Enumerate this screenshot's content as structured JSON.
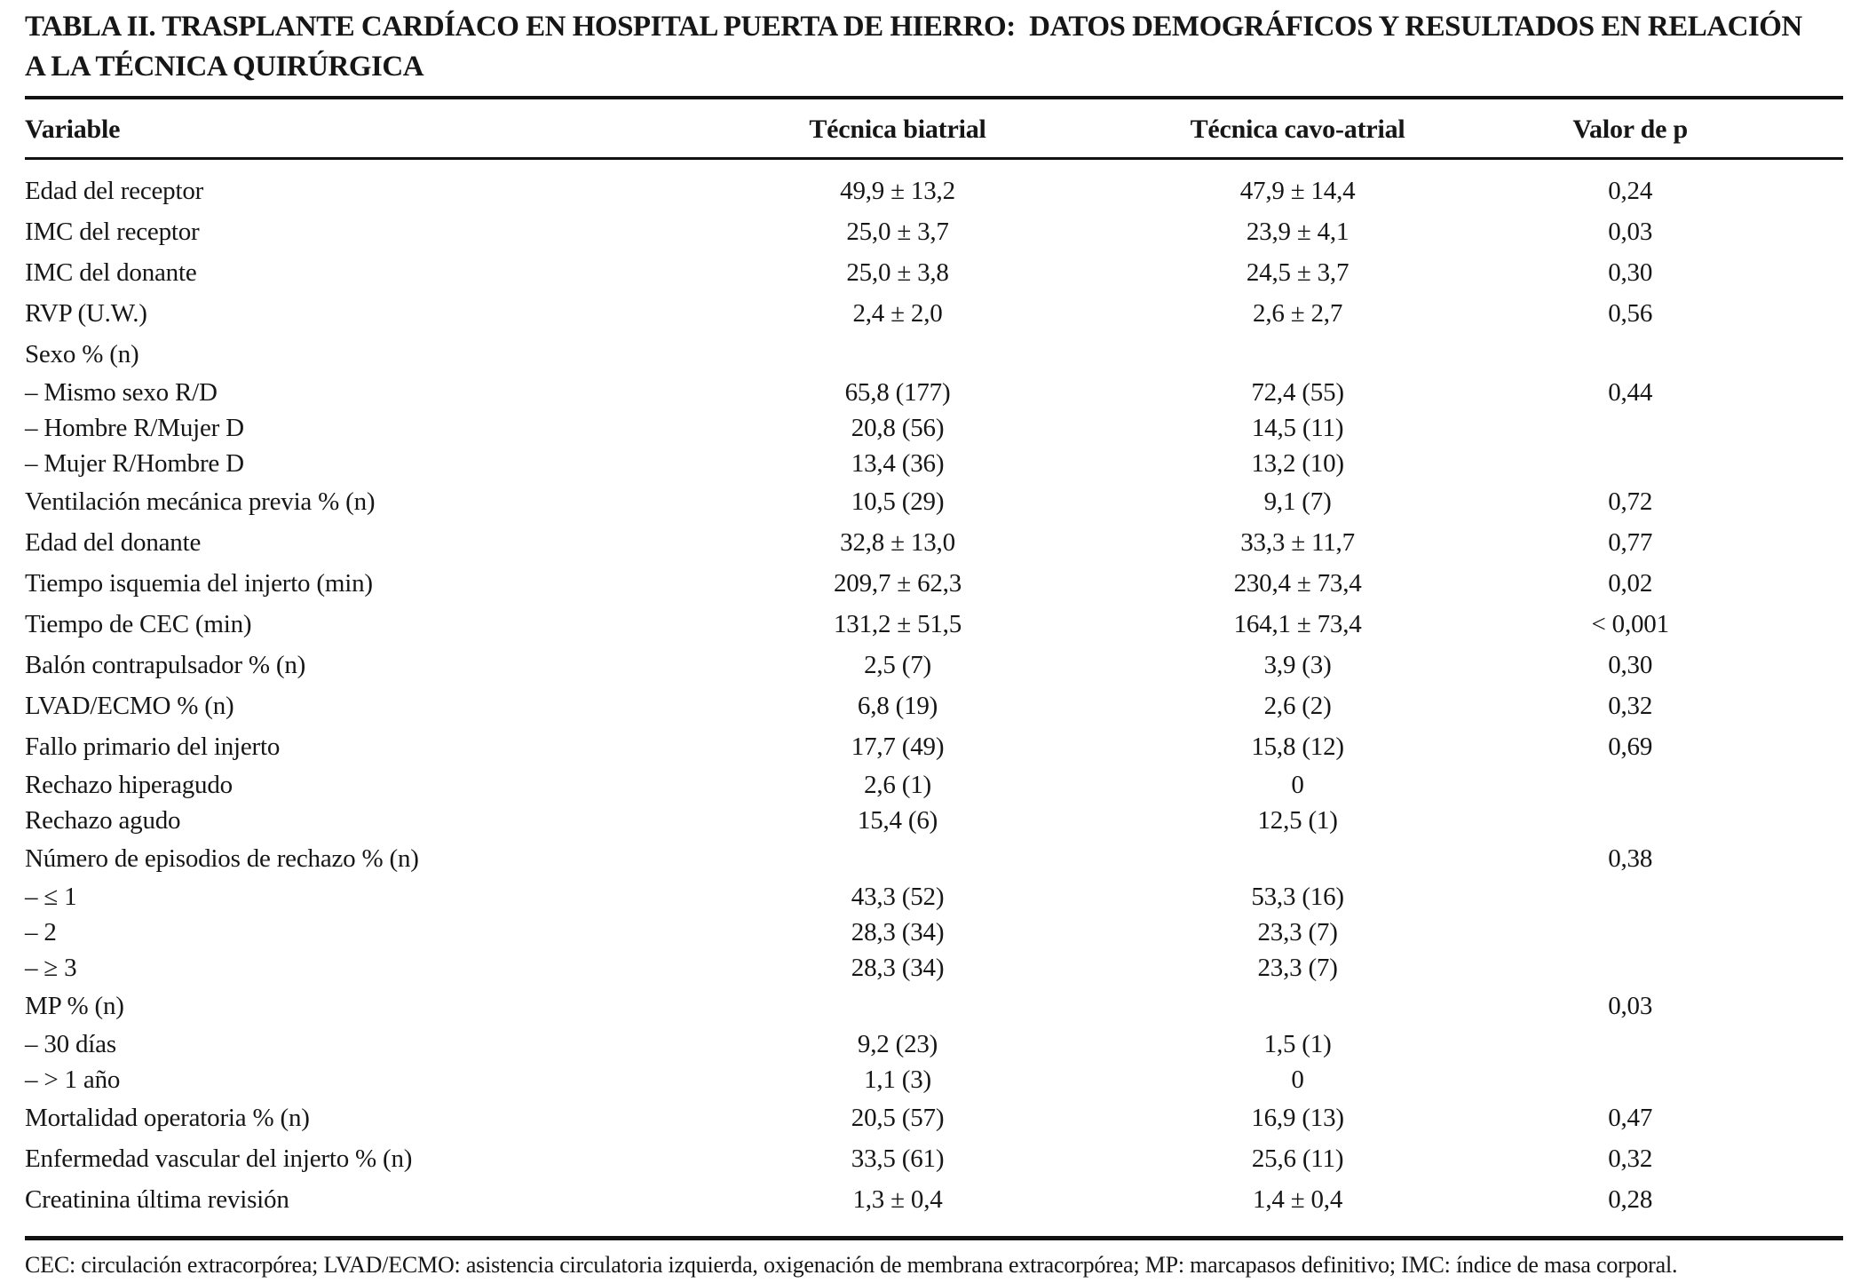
{
  "page": {
    "title_line1": "TABLA II. TRASPLANTE CARDÍACO EN HOSPITAL PUERTA DE HIERRO:  DATOS DEMOGRÁFICOS Y RESULTADOS EN RELACIÓN",
    "title_line2": "A LA TÉCNICA QUIRÚRGICA",
    "footnote": "CEC: circulación extracorpórea; LVAD/ECMO: asistencia circulatoria izquierda, oxigenación de membrana extracorpórea; MP: marcapasos definitivo; IMC: índice de masa corporal."
  },
  "table": {
    "columns": [
      "Variable",
      "Técnica biatrial",
      "Técnica cavo-atrial",
      "Valor de p"
    ],
    "rows": [
      {
        "variable": "Edad del receptor",
        "biatrial": "49,9 ± 13,2",
        "cavo_atrial": "47,9 ± 14,4",
        "p": "0,24",
        "tight": false
      },
      {
        "variable": "IMC del receptor",
        "biatrial": "25,0 ± 3,7",
        "cavo_atrial": "23,9 ± 4,1",
        "p": "0,03",
        "tight": false
      },
      {
        "variable": "IMC del donante",
        "biatrial": "25,0 ± 3,8",
        "cavo_atrial": "24,5 ± 3,7",
        "p": "0,30",
        "tight": false
      },
      {
        "variable": "RVP (U.W.)",
        "biatrial": "2,4 ± 2,0",
        "cavo_atrial": "2,6 ± 2,7",
        "p": "0,56",
        "tight": false
      },
      {
        "variable": "Sexo % (n)",
        "biatrial": "",
        "cavo_atrial": "",
        "p": "",
        "tight": false
      },
      {
        "variable": "– Mismo sexo R/D",
        "biatrial": "65,8 (177)",
        "cavo_atrial": "72,4 (55)",
        "p": "0,44",
        "tight": true
      },
      {
        "variable": "– Hombre R/Mujer D",
        "biatrial": "20,8 (56)",
        "cavo_atrial": "14,5 (11)",
        "p": "",
        "tight": true
      },
      {
        "variable": "– Mujer R/Hombre D",
        "biatrial": "13,4 (36)",
        "cavo_atrial": "13,2 (10)",
        "p": "",
        "tight": true
      },
      {
        "variable": "Ventilación mecánica previa % (n)",
        "biatrial": "10,5 (29)",
        "cavo_atrial": "9,1 (7)",
        "p": "0,72",
        "tight": false
      },
      {
        "variable": "Edad del donante",
        "biatrial": "32,8 ± 13,0",
        "cavo_atrial": "33,3 ± 11,7",
        "p": "0,77",
        "tight": false
      },
      {
        "variable": "Tiempo isquemia del injerto (min)",
        "biatrial": "209,7 ± 62,3",
        "cavo_atrial": "230,4 ± 73,4",
        "p": "0,02",
        "tight": false
      },
      {
        "variable": "Tiempo de CEC (min)",
        "biatrial": "131,2 ± 51,5",
        "cavo_atrial": "164,1 ± 73,4",
        "p": "< 0,001",
        "tight": false
      },
      {
        "variable": "Balón contrapulsador % (n)",
        "biatrial": "2,5 (7)",
        "cavo_atrial": "3,9 (3)",
        "p": "0,30",
        "tight": false
      },
      {
        "variable": "LVAD/ECMO % (n)",
        "biatrial": "6,8 (19)",
        "cavo_atrial": "2,6 (2)",
        "p": "0,32",
        "tight": false
      },
      {
        "variable": "Fallo primario del injerto",
        "biatrial": "17,7 (49)",
        "cavo_atrial": "15,8 (12)",
        "p": "0,69",
        "tight": false
      },
      {
        "variable": "Rechazo hiperagudo",
        "biatrial": "2,6 (1)",
        "cavo_atrial": "0",
        "p": "",
        "tight": true
      },
      {
        "variable": "Rechazo agudo",
        "biatrial": "15,4 (6)",
        "cavo_atrial": "12,5 (1)",
        "p": "",
        "tight": true
      },
      {
        "variable": "Número de episodios de rechazo % (n)",
        "biatrial": "",
        "cavo_atrial": "",
        "p": "0,38",
        "tight": false
      },
      {
        "variable": "– ≤ 1",
        "biatrial": "43,3 (52)",
        "cavo_atrial": "53,3 (16)",
        "p": "",
        "tight": true
      },
      {
        "variable": "– 2",
        "biatrial": "28,3 (34)",
        "cavo_atrial": "23,3 (7)",
        "p": "",
        "tight": true
      },
      {
        "variable": "– ≥ 3",
        "biatrial": "28,3 (34)",
        "cavo_atrial": "23,3 (7)",
        "p": "",
        "tight": true
      },
      {
        "variable": "MP % (n)",
        "biatrial": "",
        "cavo_atrial": "",
        "p": "0,03",
        "tight": false
      },
      {
        "variable": "– 30 días",
        "biatrial": "9,2 (23)",
        "cavo_atrial": "1,5 (1)",
        "p": "",
        "tight": true
      },
      {
        "variable": "– > 1 año",
        "biatrial": "1,1 (3)",
        "cavo_atrial": "0",
        "p": "",
        "tight": true
      },
      {
        "variable": "Mortalidad operatoria % (n)",
        "biatrial": "20,5 (57)",
        "cavo_atrial": "16,9 (13)",
        "p": "0,47",
        "tight": false
      },
      {
        "variable": "Enfermedad vascular del injerto % (n)",
        "biatrial": "33,5 (61)",
        "cavo_atrial": "25,6 (11)",
        "p": "0,32",
        "tight": false
      },
      {
        "variable": "Creatinina última revisión",
        "biatrial": "1,3 ± 0,4",
        "cavo_atrial": "1,4 ± 0,4",
        "p": "0,28",
        "tight": false
      }
    ]
  }
}
